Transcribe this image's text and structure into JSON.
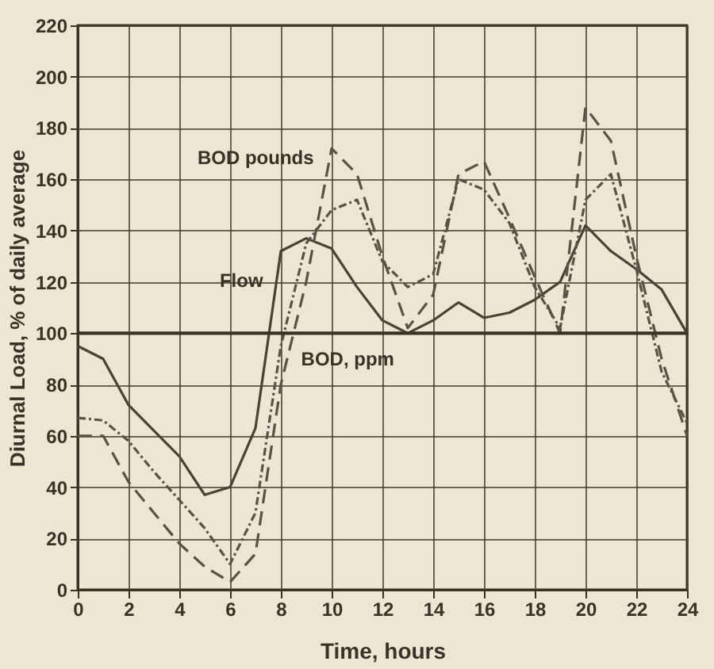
{
  "chart_data": {
    "type": "line",
    "xlabel": "Time,  hours",
    "ylabel": "Diurnal Load, % of daily average",
    "x": [
      0,
      1,
      2,
      3,
      4,
      5,
      6,
      7,
      8,
      9,
      10,
      11,
      12,
      13,
      14,
      15,
      16,
      17,
      18,
      19,
      20,
      21,
      22,
      23,
      24
    ],
    "series": [
      {
        "color": "#4a4236",
        "line_style": "solid",
        "values": [
          95,
          90,
          72,
          62,
          52,
          37,
          40,
          63,
          132,
          137,
          133,
          118,
          105,
          100,
          105,
          112,
          106,
          108,
          113,
          120,
          142,
          132,
          125,
          117,
          100
        ]
      },
      {
        "color": "#5a5246",
        "line_style": "dotted",
        "values": [
          67,
          66,
          58,
          46,
          35,
          24,
          10,
          30,
          95,
          135,
          148,
          152,
          128,
          118,
          123,
          160,
          156,
          143,
          118,
          102,
          152,
          162,
          125,
          85,
          65
        ]
      },
      {
        "color": "#5a5246",
        "line_style": "dashed",
        "values": [
          60,
          60,
          42,
          30,
          18,
          9,
          3,
          14,
          80,
          120,
          172,
          162,
          130,
          102,
          115,
          162,
          167,
          145,
          122,
          100,
          188,
          175,
          130,
          90,
          60
        ]
      }
    ],
    "annotations": [
      {
        "text": "BOD pounds",
        "x": 9.8,
        "y": 166
      },
      {
        "text": "Flow",
        "x": 7.8,
        "y": 118
      },
      {
        "text": "BOD, ppm",
        "x": 8.3,
        "y": 90
      }
    ],
    "ref_lines": [
      {
        "axis": "y",
        "value": 100,
        "color": "#3a3226"
      }
    ],
    "xlim": [
      0,
      24
    ],
    "xticks": [
      0,
      2,
      4,
      6,
      8,
      10,
      12,
      14,
      16,
      18,
      20,
      22,
      24
    ],
    "ylim": [
      0,
      220
    ],
    "yticks": [
      0,
      20,
      40,
      60,
      80,
      100,
      120,
      140,
      160,
      180,
      200,
      220
    ],
    "grid": true,
    "legend": false,
    "marker": "none"
  }
}
